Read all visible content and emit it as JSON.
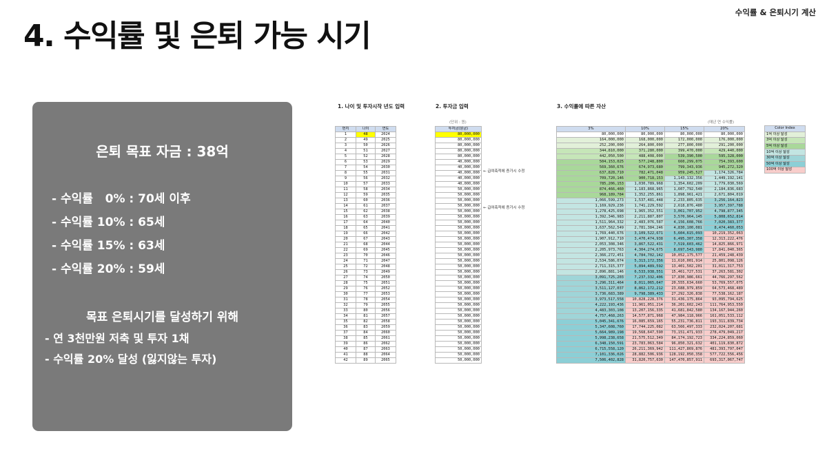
{
  "header": {
    "tag": "수익률 & 은퇴시기 계산",
    "title": "4. 수익률 및 은퇴 가능 시기"
  },
  "panel": {
    "goal": "은퇴 목표 자금 : 38억",
    "rates": [
      "- 수익률   0% : 70세 이후",
      "- 수익률 10% : 65세",
      "- 수익률 15% : 63세",
      "- 수익률 20% : 59세"
    ],
    "subtitle": "목표 은퇴시기를 달성하기 위해",
    "plans": [
      "- 연 3천만원 저축 및 투자 1채",
      "- 수익률 20% 달성 (잃지않는 투자)"
    ]
  },
  "sheet": {
    "section1": "1. 나이 및 투자시작 년도 입력",
    "section2": "2. 투자금 입력",
    "section3": "3. 수익률에 따른 자산",
    "unit_note": "(단위 : 원)",
    "unit_note2": "(매년 연 수익률)",
    "age_headers": [
      "번지",
      "나이",
      "연도"
    ],
    "invest_header": "투자금(원금)",
    "asset_headers": [
      "3%",
      "10%",
      "15%",
      "20%"
    ],
    "note_a": "← 급여축적에 증가시 수정",
    "note_b": "← 급여축적에 증가시 수정",
    "colors": {
      "header_bg": "#cfdcef",
      "highlight_yellow": "#ffff00",
      "green_1": "#e2f0d9",
      "green_2": "#c6e6b8",
      "green_3": "#a9d89a",
      "green_4": "#8cca7c",
      "teal_1": "#c3e5e2",
      "teal_2": "#9fd5d8",
      "teal_3": "#8ccfd6",
      "pink": "#f8cdcb"
    },
    "legend": {
      "header": "Color Index",
      "items": [
        {
          "label": "1억 이상 달성",
          "color": "#e2f0d9"
        },
        {
          "label": "3억 이상 달성",
          "color": "#c6e6b8"
        },
        {
          "label": "5억 이상 달성",
          "color": "#a9d89a"
        },
        {
          "label": "10억 이상 달성",
          "color": "#c3e5e2"
        },
        {
          "label": "30억 이상 달성",
          "color": "#9fd5d8"
        },
        {
          "label": "50억 이상 달성",
          "color": "#8ccfd6"
        },
        {
          "label": "100억 이상 달성",
          "color": "#f8cdcb"
        }
      ]
    },
    "rows": [
      {
        "no": "1",
        "age": "48",
        "year": "2024",
        "invest": "80,000,000",
        "a": "80,000,000",
        "b": "80,000,000",
        "c": "80,000,000",
        "d": "80,000,000"
      },
      {
        "no": "2",
        "age": "49",
        "year": "2025",
        "invest": "80,000,000",
        "a": "164,000,000",
        "b": "168,000,000",
        "c": "172,000,000",
        "d": "176,000,000"
      },
      {
        "no": "3",
        "age": "50",
        "year": "2026",
        "invest": "80,000,000",
        "a": "252,200,000",
        "b": "264,800,000",
        "c": "277,800,000",
        "d": "291,200,000"
      },
      {
        "no": "4",
        "age": "51",
        "year": "2027",
        "invest": "80,000,000",
        "a": "344,810,000",
        "b": "371,280,000",
        "c": "399,470,000",
        "d": "429,440,000"
      },
      {
        "no": "5",
        "age": "52",
        "year": "2028",
        "invest": "80,000,000",
        "a": "442,050,500",
        "b": "488,408,000",
        "c": "539,390,500",
        "d": "595,328,000"
      },
      {
        "no": "6",
        "age": "53",
        "year": "2029",
        "invest": "40,000,000",
        "a": "504,153,025",
        "b": "577,248,800",
        "c": "660,299,075",
        "d": "754,393,600"
      },
      {
        "no": "7",
        "age": "54",
        "year": "2030",
        "invest": "40,000,000",
        "a": "569,360,676",
        "b": "674,973,680",
        "c": "799,343,936",
        "d": "945,272,320"
      },
      {
        "no": "8",
        "age": "55",
        "year": "2031",
        "invest": "40,000,000",
        "a": "637,828,710",
        "b": "782,471,048",
        "c": "959,245,527",
        "d": "1,174,326,784"
      },
      {
        "no": "9",
        "age": "56",
        "year": "2032",
        "invest": "40,000,000",
        "a": "709,720,146",
        "b": "900,718,153",
        "c": "1,143,132,356",
        "d": "1,449,192,141"
      },
      {
        "no": "10",
        "age": "57",
        "year": "2033",
        "invest": "40,000,000",
        "a": "785,206,153",
        "b": "1,030,789,968",
        "c": "1,354,602,209",
        "d": "1,779,030,569"
      },
      {
        "no": "11",
        "age": "58",
        "year": "2034",
        "invest": "50,000,000",
        "a": "874,466,460",
        "b": "1,183,868,965",
        "c": "1,607,792,540",
        "d": "2,184,836,683"
      },
      {
        "no": "12",
        "age": "59",
        "year": "2035",
        "invest": "50,000,000",
        "a": "968,189,784",
        "b": "1,352,255,861",
        "c": "1,898,961,421",
        "d": "2,671,804,019"
      },
      {
        "no": "13",
        "age": "60",
        "year": "2036",
        "invest": "50,000,000",
        "a": "1,066,599,273",
        "b": "1,537,481,448",
        "c": "2,233,805,635",
        "d": "3,256,164,823"
      },
      {
        "no": "14",
        "age": "61",
        "year": "2037",
        "invest": "50,000,000",
        "a": "1,169,929,236",
        "b": "1,741,229,592",
        "c": "2,618,876,480",
        "d": "3,957,397,788"
      },
      {
        "no": "15",
        "age": "62",
        "year": "2038",
        "invest": "50,000,000",
        "a": "1,278,425,698",
        "b": "1,965,352,551",
        "c": "3,061,707,952",
        "d": "4,798,877,345"
      },
      {
        "no": "16",
        "age": "63",
        "year": "2039",
        "invest": "50,000,000",
        "a": "1,392,346,983",
        "b": "2,211,887,807",
        "c": "3,570,964,145",
        "d": "5,808,652,814"
      },
      {
        "no": "17",
        "age": "64",
        "year": "2040",
        "invest": "50,000,000",
        "a": "1,511,964,332",
        "b": "2,483,076,587",
        "c": "4,156,608,766",
        "d": "7,020,383,377"
      },
      {
        "no": "18",
        "age": "65",
        "year": "2041",
        "invest": "50,000,000",
        "a": "1,637,562,549",
        "b": "2,781,384,246",
        "c": "4,830,100,081",
        "d": "8,474,460,053"
      },
      {
        "no": "19",
        "age": "66",
        "year": "2042",
        "invest": "50,000,000",
        "a": "1,769,440,676",
        "b": "3,109,522,671",
        "c": "5,604,615,093",
        "d": "10,219,352,063"
      },
      {
        "no": "20",
        "age": "67",
        "year": "2043",
        "invest": "50,000,000",
        "a": "1,907,912,710",
        "b": "3,470,474,938",
        "c": "6,495,307,358",
        "d": "12,313,222,476"
      },
      {
        "no": "21",
        "age": "68",
        "year": "2044",
        "invest": "50,000,000",
        "a": "2,053,308,346",
        "b": "3,867,522,431",
        "c": "7,519,603,462",
        "d": "14,825,866,971"
      },
      {
        "no": "22",
        "age": "69",
        "year": "2045",
        "invest": "50,000,000",
        "a": "2,205,973,763",
        "b": "4,304,274,675",
        "c": "8,697,543,980",
        "d": "17,841,040,365"
      },
      {
        "no": "23",
        "age": "70",
        "year": "2046",
        "invest": "50,000,000",
        "a": "2,366,272,451",
        "b": "4,784,702,142",
        "c": "10,052,175,577",
        "d": "21,459,248,439"
      },
      {
        "no": "24",
        "age": "71",
        "year": "2047",
        "invest": "50,000,000",
        "a": "2,534,586,074",
        "b": "5,313,172,356",
        "c": "11,610,001,914",
        "d": "25,801,098,126"
      },
      {
        "no": "25",
        "age": "72",
        "year": "2048",
        "invest": "50,000,000",
        "a": "2,711,315,377",
        "b": "5,894,489,592",
        "c": "13,401,502,201",
        "d": "31,011,317,753"
      },
      {
        "no": "26",
        "age": "73",
        "year": "2049",
        "invest": "50,000,000",
        "a": "2,896,881,146",
        "b": "6,533,938,551",
        "c": "15,461,727,531",
        "d": "37,263,581,302"
      },
      {
        "no": "27",
        "age": "74",
        "year": "2050",
        "invest": "50,000,000",
        "a": "3,091,725,203",
        "b": "7,237,332,406",
        "c": "17,830,986,661",
        "d": "44,766,297,562"
      },
      {
        "no": "28",
        "age": "75",
        "year": "2051",
        "invest": "50,000,000",
        "a": "3,296,311,464",
        "b": "8,011,065,647",
        "c": "20,555,634,660",
        "d": "53,769,557,075"
      },
      {
        "no": "29",
        "age": "76",
        "year": "2052",
        "invest": "50,000,000",
        "a": "3,511,127,037",
        "b": "8,862,172,212",
        "c": "23,688,979,859",
        "d": "64,573,468,489"
      },
      {
        "no": "30",
        "age": "77",
        "year": "2053",
        "invest": "50,000,000",
        "a": "3,736,683,389",
        "b": "9,798,389,433",
        "c": "27,292,326,838",
        "d": "77,538,162,187"
      },
      {
        "no": "31",
        "age": "78",
        "year": "2054",
        "invest": "50,000,000",
        "a": "3,973,517,558",
        "b": "10,828,228,376",
        "c": "31,436,175,864",
        "d": "93,095,794,625"
      },
      {
        "no": "32",
        "age": "79",
        "year": "2055",
        "invest": "50,000,000",
        "a": "4,222,193,436",
        "b": "11,961,051,214",
        "c": "36,201,602,243",
        "d": "111,764,953,550"
      },
      {
        "no": "33",
        "age": "80",
        "year": "2056",
        "invest": "50,000,000",
        "a": "4,483,303,108",
        "b": "13,207,156,335",
        "c": "41,681,842,580",
        "d": "134,167,944,260"
      },
      {
        "no": "34",
        "age": "81",
        "year": "2057",
        "invest": "50,000,000",
        "a": "4,757,468,263",
        "b": "14,577,871,968",
        "c": "47,984,118,966",
        "d": "161,051,533,112"
      },
      {
        "no": "35",
        "age": "82",
        "year": "2058",
        "invest": "50,000,000",
        "a": "5,045,341,676",
        "b": "16,085,659,165",
        "c": "55,231,736,811",
        "d": "193,311,839,734"
      },
      {
        "no": "36",
        "age": "83",
        "year": "2059",
        "invest": "50,000,000",
        "a": "5,347,608,760",
        "b": "17,744,225,082",
        "c": "63,566,497,333",
        "d": "232,024,207,681"
      },
      {
        "no": "37",
        "age": "84",
        "year": "2060",
        "invest": "50,000,000",
        "a": "5,664,989,198",
        "b": "19,568,647,590",
        "c": "73,151,471,933",
        "d": "278,479,049,217"
      },
      {
        "no": "38",
        "age": "85",
        "year": "2061",
        "invest": "50,000,000",
        "a": "5,998,238,658",
        "b": "21,575,512,349",
        "c": "84,174,192,723",
        "d": "334,224,859,060"
      },
      {
        "no": "39",
        "age": "86",
        "year": "2062",
        "invest": "50,000,000",
        "a": "6,348,150,591",
        "b": "23,783,063,584",
        "c": "96,850,321,632",
        "d": "401,119,830,872"
      },
      {
        "no": "40",
        "age": "87",
        "year": "2063",
        "invest": "50,000,000",
        "a": "6,715,558,120",
        "b": "26,211,369,942",
        "c": "111,427,869,876",
        "d": "481,393,797,047"
      },
      {
        "no": "41",
        "age": "88",
        "year": "2064",
        "invest": "50,000,000",
        "a": "7,101,336,026",
        "b": "28,882,506,936",
        "c": "128,192,050,358",
        "d": "577,722,556,456"
      },
      {
        "no": "42",
        "age": "89",
        "year": "2065",
        "invest": "50,000,000",
        "a": "7,506,402,828",
        "b": "31,820,757,630",
        "c": "147,470,857,911",
        "d": "693,317,067,747"
      }
    ]
  }
}
